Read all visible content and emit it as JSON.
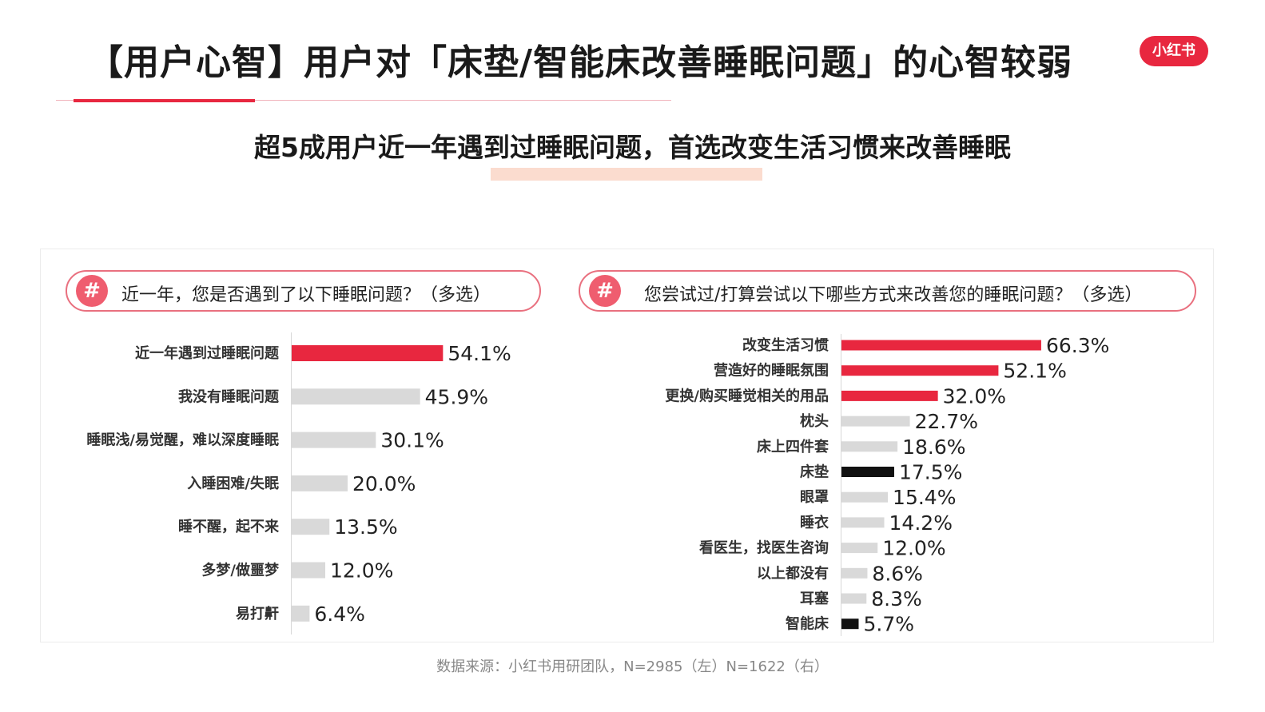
{
  "header": {
    "title": "【用户心智】用户对「床垫/智能床改善睡眠问题」的心智较弱",
    "logo_text": "小红书",
    "subtitle": "超5成用户近一年遇到过睡眠问题，首选改变生活习惯来改善睡眠"
  },
  "colors": {
    "accent": "#e8273f",
    "gray_bar": "#d9d9d9",
    "black_bar": "#111111"
  },
  "left_panel": {
    "hash": "#",
    "question": "近一年，您是否遇到了以下睡眠问题？（多选）"
  },
  "right_panel": {
    "hash": "#",
    "question": "您尝试过/打算尝试以下哪些方式来改善您的睡眠问题？（多选）"
  },
  "footer": {
    "source": "数据来源：小红书用研团队，N=2985（左）N=1622（右）"
  },
  "chart_data": [
    {
      "type": "bar",
      "orientation": "horizontal",
      "unit": "%",
      "categories": [
        "近一年遇到过睡眠问题",
        "我没有睡眠问题",
        "睡眠浅/易觉醒，难以深度睡眠",
        "入睡困难/失眠",
        "睡不醒，起不来",
        "多梦/做噩梦",
        "易打鼾"
      ],
      "values": [
        54.1,
        45.9,
        30.1,
        20.0,
        13.5,
        12.0,
        6.4
      ],
      "labels": [
        "54.1%",
        "45.9%",
        "30.1%",
        "20.0%",
        "13.5%",
        "12.0%",
        "6.4%"
      ],
      "colors": [
        "#e8273f",
        "#d9d9d9",
        "#d9d9d9",
        "#d9d9d9",
        "#d9d9d9",
        "#d9d9d9",
        "#d9d9d9"
      ]
    },
    {
      "type": "bar",
      "orientation": "horizontal",
      "unit": "%",
      "categories": [
        "改变生活习惯",
        "营造好的睡眠氛围",
        "更换/购买睡觉相关的用品",
        "枕头",
        "床上四件套",
        "床垫",
        "眼罩",
        "睡衣",
        "看医生，找医生咨询",
        "以上都没有",
        "耳塞",
        "智能床"
      ],
      "values": [
        66.3,
        52.1,
        32.0,
        22.7,
        18.6,
        17.5,
        15.4,
        14.2,
        12.0,
        8.6,
        8.3,
        5.7
      ],
      "labels": [
        "66.3%",
        "52.1%",
        "32.0%",
        "22.7%",
        "18.6%",
        "17.5%",
        "15.4%",
        "14.2%",
        "12.0%",
        "8.6%",
        "8.3%",
        "5.7%"
      ],
      "colors": [
        "#e8273f",
        "#e8273f",
        "#e8273f",
        "#d9d9d9",
        "#d9d9d9",
        "#111111",
        "#d9d9d9",
        "#d9d9d9",
        "#d9d9d9",
        "#d9d9d9",
        "#d9d9d9",
        "#111111"
      ]
    }
  ]
}
